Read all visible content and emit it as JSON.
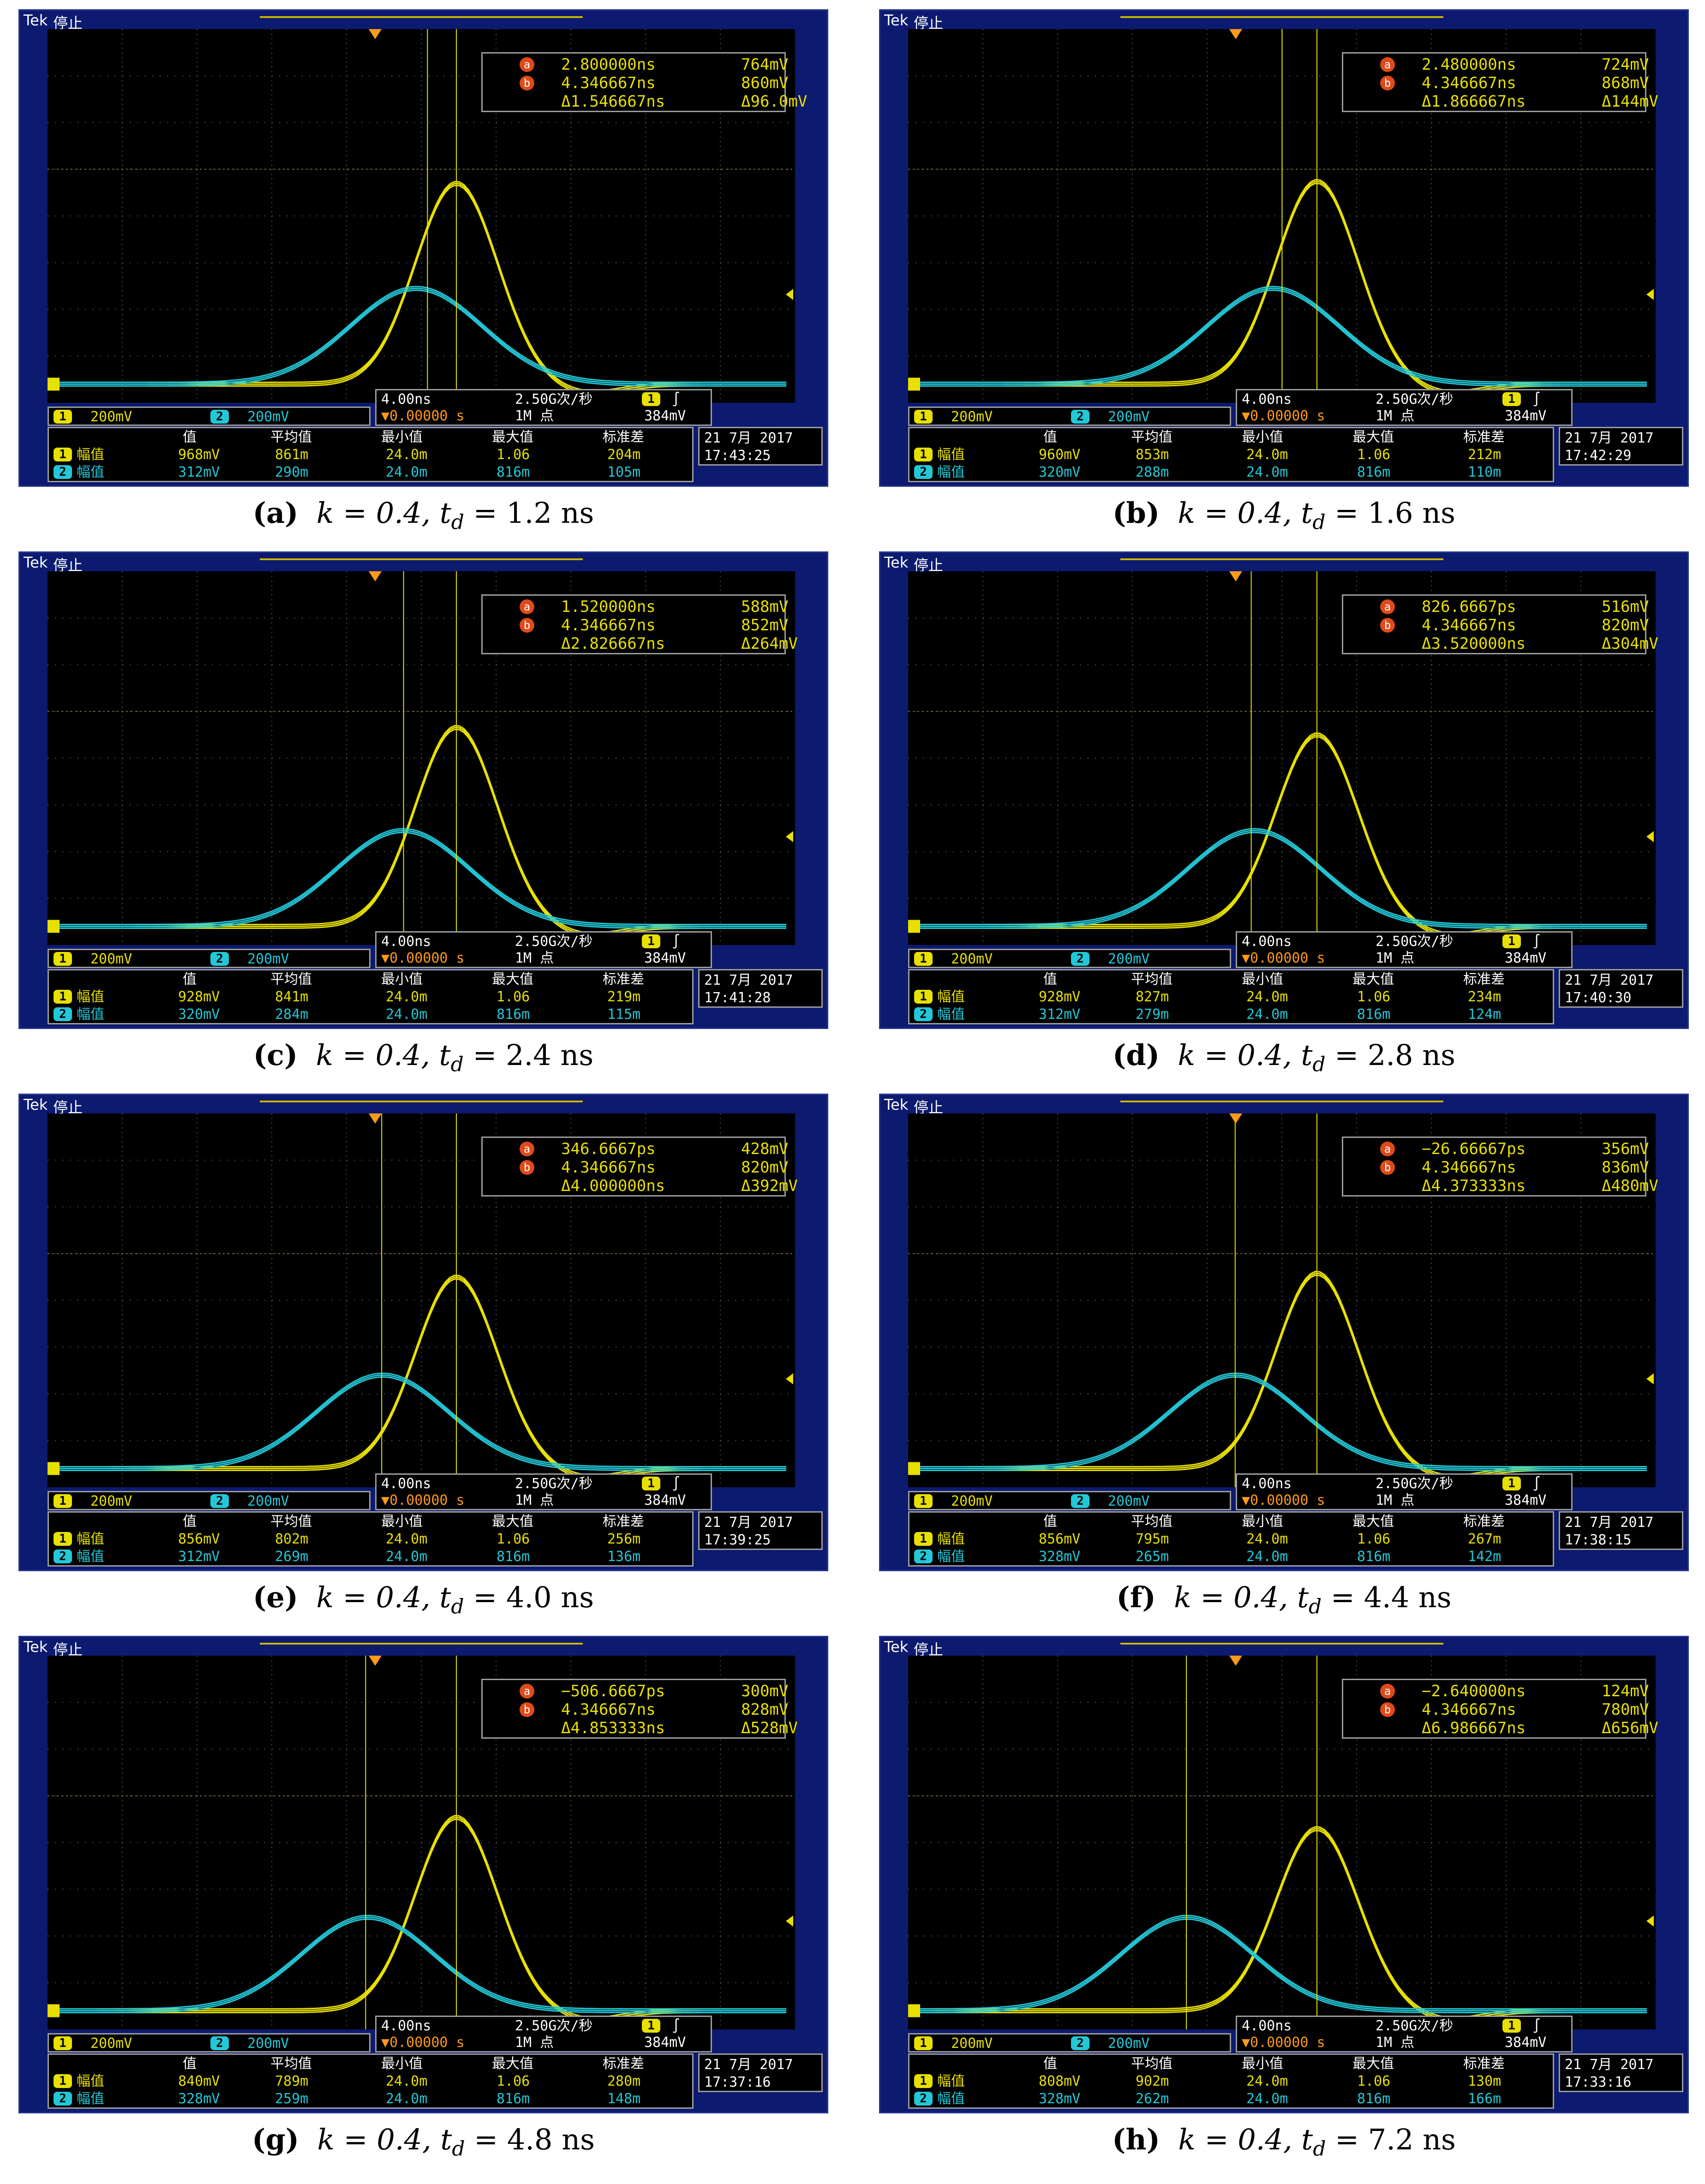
{
  "common": {
    "tek": "Tek",
    "status": "停止",
    "ch1_scale": "200mV",
    "ch2_scale": "200mV",
    "ch1_num": "1",
    "ch2_num": "2",
    "timebase": "4.00ns",
    "trig_pos": "▼0.00000 s",
    "sample_rate": "2.50G次/秒",
    "record": "1M 点",
    "trig_ch": "1",
    "trig_slope": "∫",
    "trig_level": "384mV",
    "hdr_value": "值",
    "hdr_mean": "平均值",
    "hdr_min": "最小值",
    "hdr_max": "最大值",
    "hdr_std": "标准差",
    "meas_label": "幅值",
    "cursor_a": "a",
    "cursor_b": "b",
    "ch1_color": "#e8e000",
    "ch2_color": "#22c8d8"
  },
  "panels": [
    {
      "letter": "(a)",
      "k": "k = 0.4,",
      "td_label": "t",
      "td_sub": "d",
      "td_value": "= 1.2 ns",
      "a_time": "2.800000ns",
      "a_volt": "764mV",
      "b_time": "4.346667ns",
      "b_volt": "860mV",
      "d_time": "Δ1.546667ns",
      "d_volt": "Δ96.0mV",
      "m1": [
        "968mV",
        "861m",
        "24.0m",
        "1.06",
        "204m"
      ],
      "m2": [
        "312mV",
        "290m",
        "24.0m",
        "816m",
        "105m"
      ],
      "date": "21 7月  2017",
      "time": "17:43:25",
      "cursor_a_x": 2.8,
      "peak1": 860,
      "peak2": 410,
      "peak2_x": 2.2
    },
    {
      "letter": "(b)",
      "k": "k = 0.4,",
      "td_label": "t",
      "td_sub": "d",
      "td_value": "= 1.6 ns",
      "a_time": "2.480000ns",
      "a_volt": "724mV",
      "b_time": "4.346667ns",
      "b_volt": "868mV",
      "d_time": "Δ1.866667ns",
      "d_volt": "Δ144mV",
      "m1": [
        "960mV",
        "853m",
        "24.0m",
        "1.06",
        "212m"
      ],
      "m2": [
        "320mV",
        "288m",
        "24.0m",
        "816m",
        "110m"
      ],
      "date": "21 7月  2017",
      "time": "17:42:29",
      "cursor_a_x": 2.48,
      "peak1": 868,
      "peak2": 410,
      "peak2_x": 2.0
    },
    {
      "letter": "(c)",
      "k": "k = 0.4,",
      "td_label": "t",
      "td_sub": "d",
      "td_value": "= 2.4 ns",
      "a_time": "1.520000ns",
      "a_volt": "588mV",
      "b_time": "4.346667ns",
      "b_volt": "852mV",
      "d_time": "Δ2.826667ns",
      "d_volt": "Δ264mV",
      "m1": [
        "928mV",
        "841m",
        "24.0m",
        "1.06",
        "219m"
      ],
      "m2": [
        "320mV",
        "284m",
        "24.0m",
        "816m",
        "115m"
      ],
      "date": "21 7月  2017",
      "time": "17:41:28",
      "cursor_a_x": 1.52,
      "peak1": 852,
      "peak2": 410,
      "peak2_x": 1.5
    },
    {
      "letter": "(d)",
      "k": "k = 0.4,",
      "td_label": "t",
      "td_sub": "d",
      "td_value": "= 2.8 ns",
      "a_time": "826.6667ps",
      "a_volt": "516mV",
      "b_time": "4.346667ns",
      "b_volt": "820mV",
      "d_time": "Δ3.520000ns",
      "d_volt": "Δ304mV",
      "m1": [
        "928mV",
        "827m",
        "24.0m",
        "1.06",
        "234m"
      ],
      "m2": [
        "312mV",
        "279m",
        "24.0m",
        "816m",
        "124m"
      ],
      "date": "21 7月  2017",
      "time": "17:40:30",
      "cursor_a_x": 0.83,
      "peak1": 820,
      "peak2": 410,
      "peak2_x": 1.0
    },
    {
      "letter": "(e)",
      "k": "k = 0.4,",
      "td_label": "t",
      "td_sub": "d",
      "td_value": "= 4.0 ns",
      "a_time": "346.6667ps",
      "a_volt": "428mV",
      "b_time": "4.346667ns",
      "b_volt": "820mV",
      "d_time": "Δ4.000000ns",
      "d_volt": "Δ392mV",
      "m1": [
        "856mV",
        "802m",
        "24.0m",
        "1.06",
        "256m"
      ],
      "m2": [
        "312mV",
        "269m",
        "24.0m",
        "816m",
        "136m"
      ],
      "date": "21 7月  2017",
      "time": "17:39:25",
      "cursor_a_x": 0.35,
      "peak1": 820,
      "peak2": 400,
      "peak2_x": 0.4
    },
    {
      "letter": "(f)",
      "k": "k = 0.4,",
      "td_label": "t",
      "td_sub": "d",
      "td_value": "= 4.4 ns",
      "a_time": "−26.66667ps",
      "a_volt": "356mV",
      "b_time": "4.346667ns",
      "b_volt": "836mV",
      "d_time": "Δ4.373333ns",
      "d_volt": "Δ480mV",
      "m1": [
        "856mV",
        "795m",
        "24.0m",
        "1.06",
        "267m"
      ],
      "m2": [
        "328mV",
        "265m",
        "24.0m",
        "816m",
        "142m"
      ],
      "date": "21 7月  2017",
      "time": "17:38:15",
      "cursor_a_x": -0.03,
      "peak1": 836,
      "peak2": 400,
      "peak2_x": 0.0
    },
    {
      "letter": "(g)",
      "k": "k = 0.4,",
      "td_label": "t",
      "td_sub": "d",
      "td_value": "= 4.8 ns",
      "a_time": "−506.6667ps",
      "a_volt": "300mV",
      "b_time": "4.346667ns",
      "b_volt": "828mV",
      "d_time": "Δ4.853333ns",
      "d_volt": "Δ528mV",
      "m1": [
        "840mV",
        "789m",
        "24.0m",
        "1.06",
        "280m"
      ],
      "m2": [
        "328mV",
        "259m",
        "24.0m",
        "816m",
        "148m"
      ],
      "date": "21 7月  2017",
      "time": "17:37:16",
      "cursor_a_x": -0.51,
      "peak1": 828,
      "peak2": 400,
      "peak2_x": -0.4
    },
    {
      "letter": "(h)",
      "k": "k = 0.4,",
      "td_label": "t",
      "td_sub": "d",
      "td_value": "= 7.2 ns",
      "a_time": "−2.640000ns",
      "a_volt": "124mV",
      "b_time": "4.346667ns",
      "b_volt": "780mV",
      "d_time": "Δ6.986667ns",
      "d_volt": "Δ656mV",
      "m1": [
        "808mV",
        "902m",
        "24.0m",
        "1.06",
        "130m"
      ],
      "m2": [
        "328mV",
        "262m",
        "24.0m",
        "816m",
        "166m"
      ],
      "date": "21 7月  2017",
      "time": "17:33:16",
      "cursor_a_x": -2.64,
      "peak1": 780,
      "peak2": 400,
      "peak2_x": -2.6
    }
  ]
}
